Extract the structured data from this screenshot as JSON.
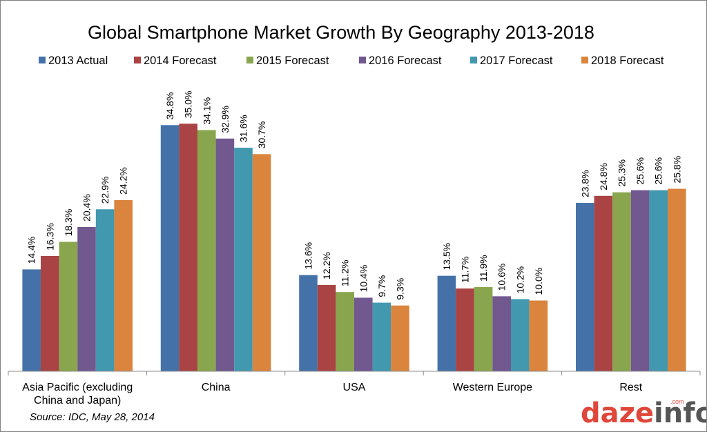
{
  "chart_data": {
    "type": "bar",
    "title": "Global Smartphone Market Growth By Geography 2013-2018",
    "categories": [
      [
        "Asia Pacific (excluding",
        "China and Japan)"
      ],
      [
        "China"
      ],
      [
        "USA"
      ],
      [
        "Western Europe"
      ],
      [
        "Rest"
      ]
    ],
    "series": [
      {
        "name": "2013 Actual",
        "color": "#4472a8",
        "values": [
          14.4,
          34.8,
          13.6,
          13.5,
          23.8
        ],
        "labels": [
          "14.4%",
          "34.8%",
          "13.6%",
          "13.5%",
          "23.8%"
        ]
      },
      {
        "name": "2014 Forecast",
        "color": "#aa4343",
        "values": [
          16.3,
          35.0,
          12.2,
          11.7,
          24.8
        ],
        "labels": [
          "16.3%",
          "35.0%",
          "12.2%",
          "11.7%",
          "24.8%"
        ]
      },
      {
        "name": "2015 Forecast",
        "color": "#89a54e",
        "values": [
          18.3,
          34.1,
          11.2,
          11.9,
          25.3
        ],
        "labels": [
          "18.3%",
          "34.1%",
          "11.2%",
          "11.9%",
          "25.3%"
        ]
      },
      {
        "name": "2016 Forecast",
        "color": "#71588f",
        "values": [
          20.4,
          32.9,
          10.4,
          10.6,
          25.6
        ],
        "labels": [
          "20.4%",
          "32.9%",
          "10.4%",
          "10.6%",
          "25.6%"
        ]
      },
      {
        "name": "2017 Forecast",
        "color": "#4198af",
        "values": [
          22.9,
          31.6,
          9.7,
          10.2,
          25.6
        ],
        "labels": [
          "22.9%",
          "31.6%",
          "9.7%",
          "10.2%",
          "25.6%"
        ]
      },
      {
        "name": "2018 Forecast",
        "color": "#db843d",
        "values": [
          24.2,
          30.7,
          9.3,
          10.0,
          25.8
        ],
        "labels": [
          "24.2%",
          "30.7%",
          "9.3%",
          "10.0%",
          "25.8%"
        ]
      }
    ],
    "ylim": [
      0,
      40
    ],
    "grid": false,
    "legend": "top",
    "source": "Source: IDC, May 28, 2014"
  },
  "logo": {
    "text": "dazeinfo",
    "tagline": ".com",
    "colors": {
      "red": "#e0473a",
      "gray": "#555555"
    }
  }
}
